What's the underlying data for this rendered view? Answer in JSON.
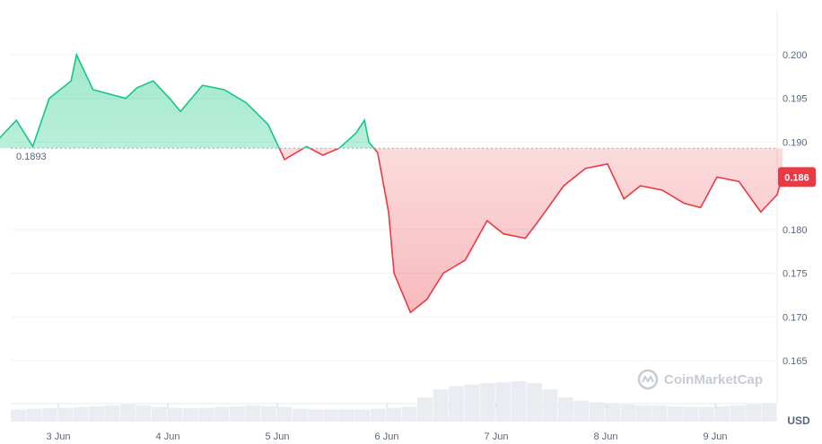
{
  "chart_data": {
    "type": "line",
    "title": "",
    "xlabel": "",
    "ylabel": "",
    "unit": "USD",
    "ylim": [
      0.16,
      0.205
    ],
    "y_ticks": [
      "0.200",
      "0.195",
      "0.190",
      "0.180",
      "0.175",
      "0.170",
      "0.165"
    ],
    "x_ticks": [
      "3 Jun",
      "4 Jun",
      "5 Jun",
      "6 Jun",
      "7 Jun",
      "8 Jun",
      "9 Jun"
    ],
    "baseline": 0.1893,
    "baseline_label": "0.1893",
    "current_value": 0.186,
    "current_label": "0.186",
    "grid": true,
    "colors": {
      "above": "#16c784",
      "below": "#ea3943",
      "grid": "#eff2f5",
      "volume": "#e9ecf1"
    },
    "series": [
      {
        "days": [
          2.3,
          2.45,
          2.6,
          2.75,
          2.9,
          3.1,
          3.15,
          3.3,
          3.45,
          3.6,
          3.7,
          3.85,
          4.0,
          4.1,
          4.3,
          4.5,
          4.7,
          4.9,
          5.05,
          5.25,
          5.4,
          5.55,
          5.7,
          5.78,
          5.82,
          5.9,
          6.0,
          6.05,
          6.2,
          6.35,
          6.5,
          6.7,
          6.9,
          7.05,
          7.25,
          7.4,
          7.6,
          7.8,
          8.0,
          8.15,
          8.3,
          8.5,
          8.7,
          8.85,
          9.0,
          9.2,
          9.4,
          9.55,
          9.6
        ],
        "values": [
          0.1895,
          0.1905,
          0.1925,
          0.1895,
          0.195,
          0.197,
          0.2,
          0.196,
          0.1955,
          0.195,
          0.1962,
          0.197,
          0.195,
          0.1935,
          0.1965,
          0.196,
          0.1945,
          0.192,
          0.188,
          0.1895,
          0.1885,
          0.1893,
          0.191,
          0.1925,
          0.19,
          0.1888,
          0.182,
          0.175,
          0.1705,
          0.172,
          0.175,
          0.1765,
          0.181,
          0.1795,
          0.179,
          0.1815,
          0.185,
          0.187,
          0.1875,
          0.1835,
          0.185,
          0.1845,
          0.183,
          0.1825,
          0.186,
          0.1855,
          0.182,
          0.184,
          0.1862
        ]
      }
    ],
    "volume": [
      0.3,
      0.32,
      0.33,
      0.34,
      0.36,
      0.38,
      0.4,
      0.42,
      0.4,
      0.36,
      0.34,
      0.33,
      0.34,
      0.36,
      0.38,
      0.4,
      0.38,
      0.36,
      0.32,
      0.3,
      0.3,
      0.3,
      0.3,
      0.32,
      0.34,
      0.36,
      0.6,
      0.8,
      0.88,
      0.92,
      0.95,
      0.97,
      1.0,
      0.95,
      0.8,
      0.6,
      0.52,
      0.48,
      0.44,
      0.42,
      0.4,
      0.4,
      0.38,
      0.36,
      0.36,
      0.38,
      0.4,
      0.42,
      0.44
    ]
  },
  "watermark": {
    "text": "CoinMarketCap"
  }
}
